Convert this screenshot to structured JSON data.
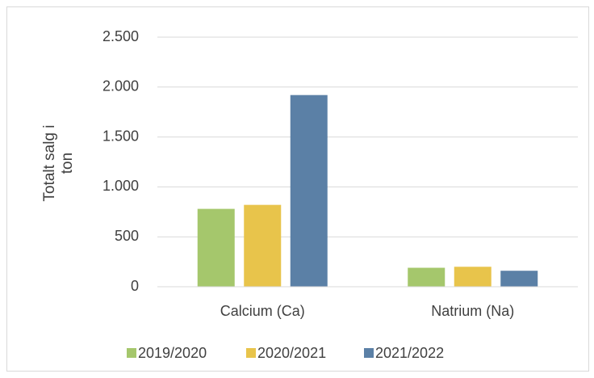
{
  "chart_data": {
    "type": "bar",
    "categories": [
      "Calcium (Ca)",
      "Natrium (Na)"
    ],
    "series": [
      {
        "name": "2019/2020",
        "color": "#a5c76c",
        "values": [
          780,
          190
        ]
      },
      {
        "name": "2020/2021",
        "color": "#e8c44b",
        "values": [
          820,
          200
        ]
      },
      {
        "name": "2021/2022",
        "color": "#5b80a6",
        "values": [
          1920,
          160
        ]
      }
    ],
    "ylabel": "Totalt salg i ton",
    "ylim": [
      0,
      2500
    ],
    "yticks": [
      0,
      500,
      {
        "value": 1000,
        "label": "1.000"
      },
      {
        "value": 1500,
        "label": "1.500"
      },
      {
        "value": 2000,
        "label": "2.000"
      },
      {
        "value": 2500,
        "label": "2.500"
      }
    ],
    "grid": true,
    "legend": "bottom"
  }
}
